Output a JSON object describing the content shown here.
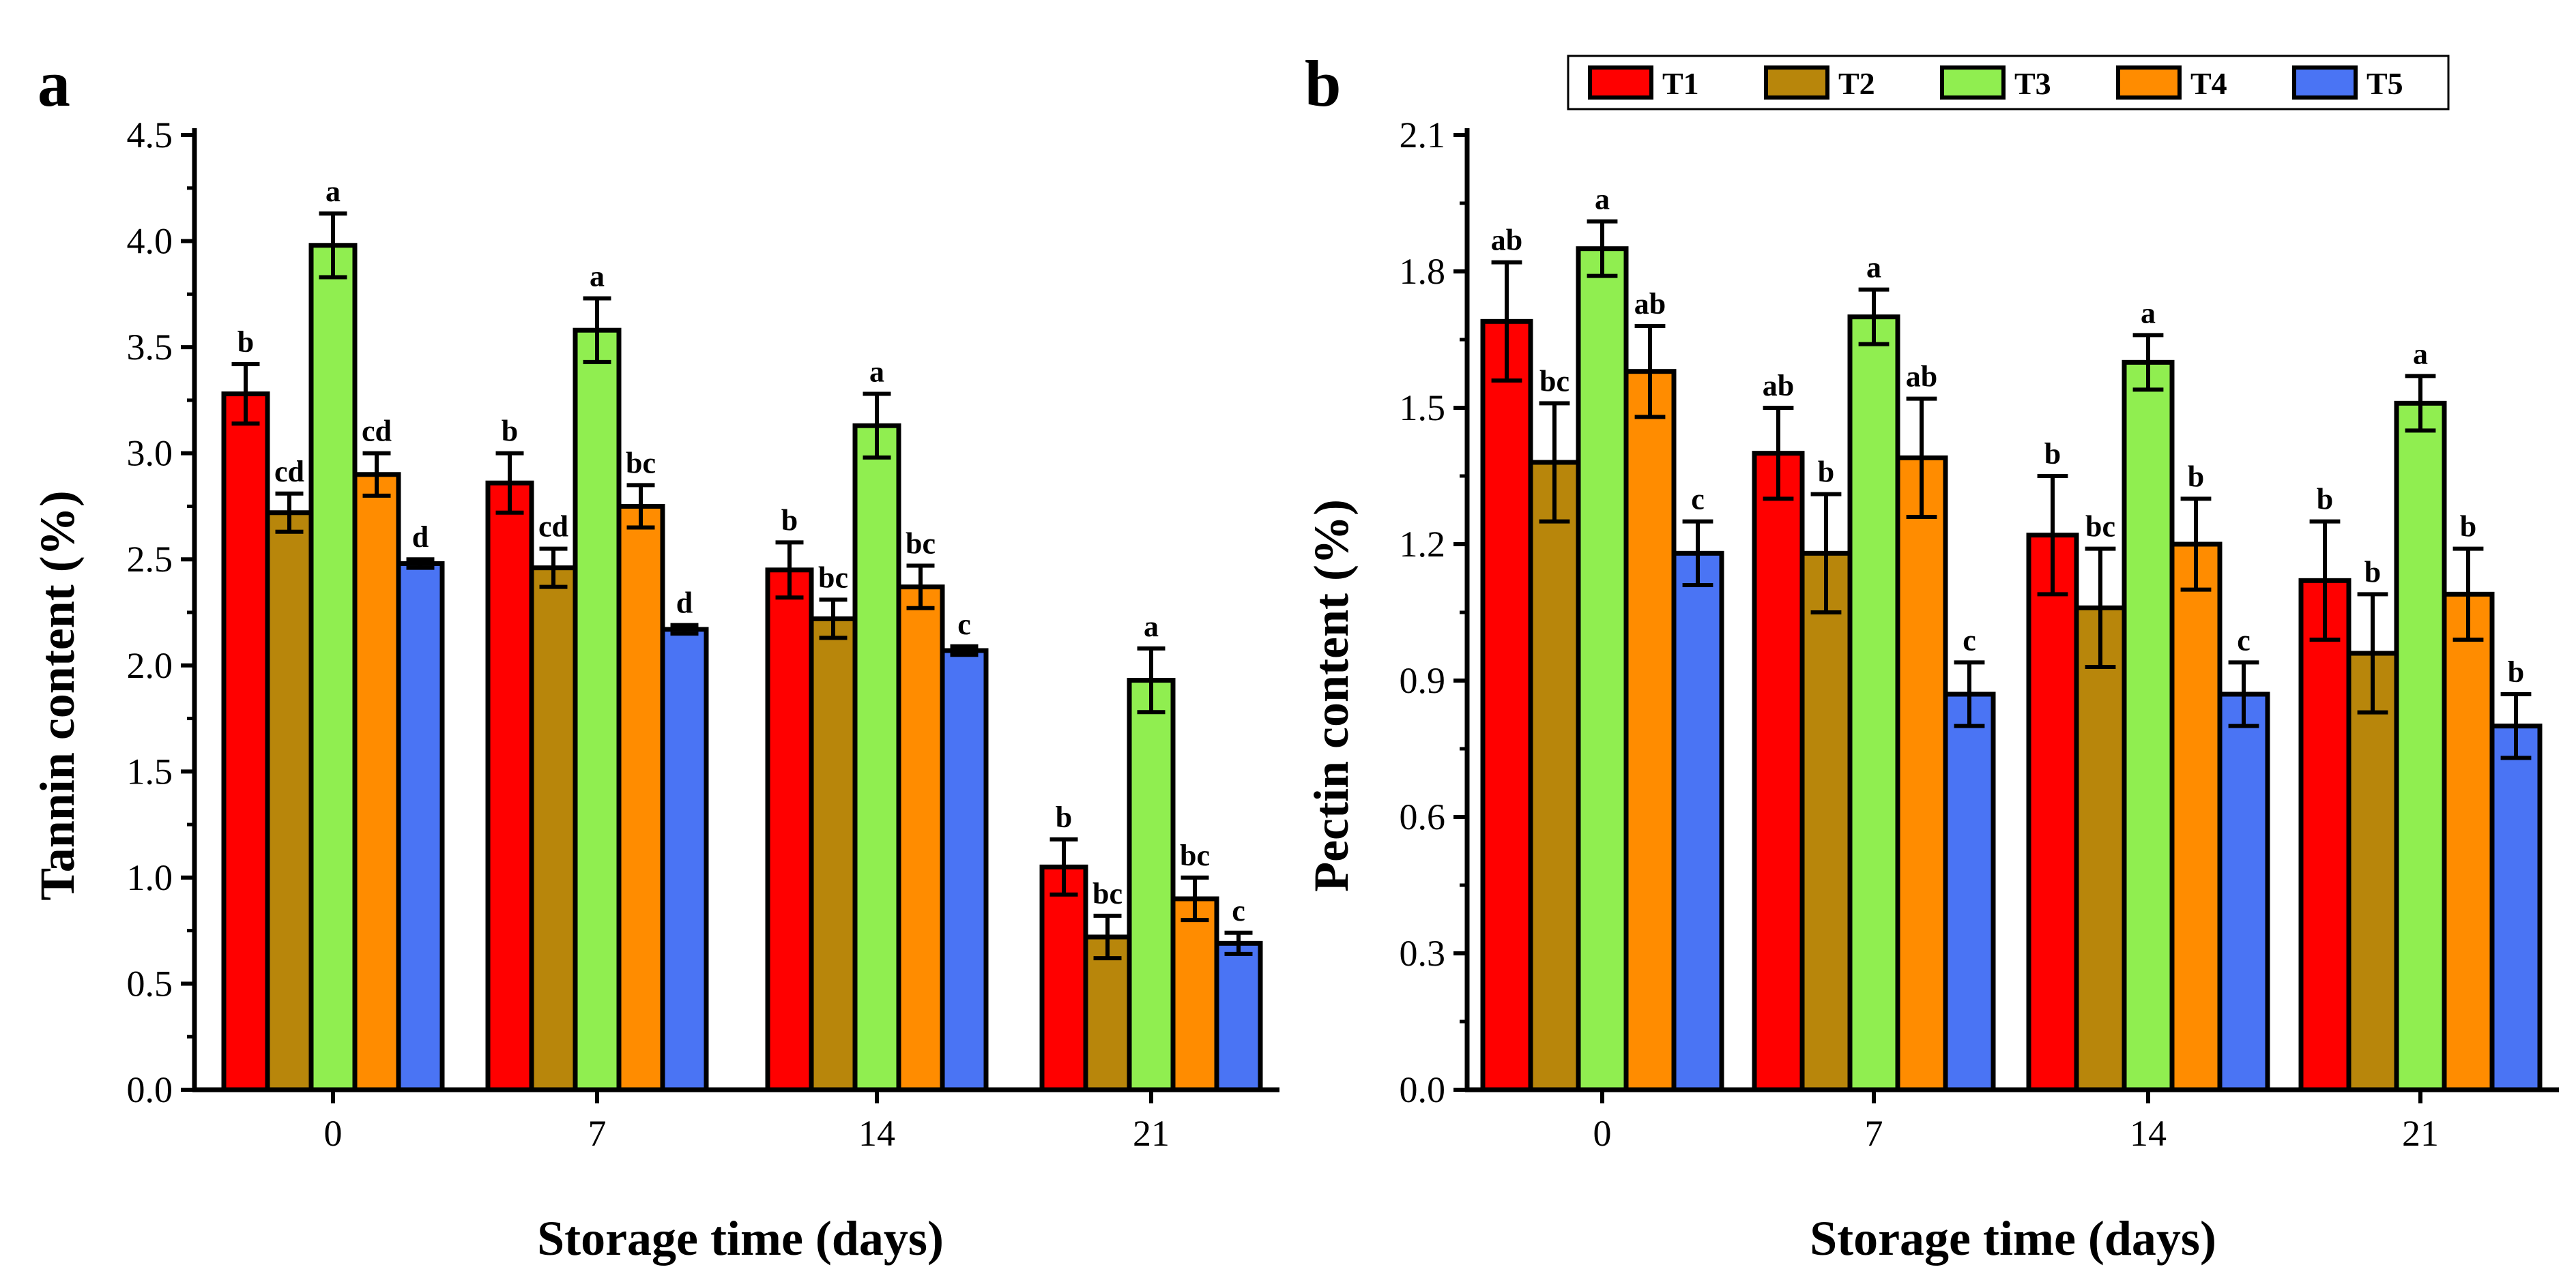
{
  "figure_title": "",
  "chart_data": [
    {
      "panel": "a",
      "type": "bar",
      "title": "",
      "xlabel": "Storage time (days)",
      "ylabel": "Tannin content (%)",
      "categories": [
        "0",
        "7",
        "14",
        "21"
      ],
      "ylim": [
        0,
        4.5
      ],
      "yticks": [
        "0.0",
        "0.5",
        "1.0",
        "1.5",
        "2.0",
        "2.5",
        "3.0",
        "3.5",
        "4.0",
        "4.5"
      ],
      "grid": false,
      "series": [
        {
          "name": "T1",
          "color": "#ff0000",
          "values": [
            3.28,
            2.86,
            2.45,
            1.05
          ],
          "errors": [
            0.14,
            0.14,
            0.13,
            0.13
          ],
          "labels": [
            "b",
            "b",
            "b",
            "b"
          ]
        },
        {
          "name": "T2",
          "color": "#b8860b",
          "values": [
            2.72,
            2.46,
            2.22,
            0.72
          ],
          "errors": [
            0.09,
            0.09,
            0.09,
            0.1
          ],
          "labels": [
            "cd",
            "cd",
            "bc",
            "bc"
          ]
        },
        {
          "name": "T3",
          "color": "#90ee50",
          "values": [
            3.98,
            3.58,
            3.13,
            1.93
          ],
          "errors": [
            0.15,
            0.15,
            0.15,
            0.15
          ],
          "labels": [
            "a",
            "a",
            "a",
            "a"
          ]
        },
        {
          "name": "T4",
          "color": "#ff8c00",
          "values": [
            2.9,
            2.75,
            2.37,
            0.9
          ],
          "errors": [
            0.1,
            0.1,
            0.1,
            0.1
          ],
          "labels": [
            "cd",
            "bc",
            "bc",
            "bc"
          ]
        },
        {
          "name": "T5",
          "color": "#4a74f4",
          "values": [
            2.48,
            2.17,
            2.07,
            0.69
          ],
          "errors": [
            0.02,
            0.02,
            0.02,
            0.05
          ],
          "labels": [
            "d",
            "d",
            "c",
            "c"
          ]
        }
      ]
    },
    {
      "panel": "b",
      "type": "bar",
      "title": "",
      "xlabel": "Storage time (days)",
      "ylabel": "Pectin content (%)",
      "categories": [
        "0",
        "7",
        "14",
        "21"
      ],
      "ylim": [
        0,
        2.1
      ],
      "yticks": [
        "0.0",
        "0.3",
        "0.6",
        "0.9",
        "1.2",
        "1.5",
        "1.8",
        "2.1"
      ],
      "grid": false,
      "legend_position": "top-right",
      "series": [
        {
          "name": "T1",
          "color": "#ff0000",
          "values": [
            1.69,
            1.4,
            1.22,
            1.12
          ],
          "errors": [
            0.13,
            0.1,
            0.13,
            0.13
          ],
          "labels": [
            "ab",
            "ab",
            "b",
            "b"
          ]
        },
        {
          "name": "T2",
          "color": "#b8860b",
          "values": [
            1.38,
            1.18,
            1.06,
            0.96
          ],
          "errors": [
            0.13,
            0.13,
            0.13,
            0.13
          ],
          "labels": [
            "bc",
            "b",
            "bc",
            "b"
          ]
        },
        {
          "name": "T3",
          "color": "#90ee50",
          "values": [
            1.85,
            1.7,
            1.6,
            1.51
          ],
          "errors": [
            0.06,
            0.06,
            0.06,
            0.06
          ],
          "labels": [
            "a",
            "a",
            "a",
            "a"
          ]
        },
        {
          "name": "T4",
          "color": "#ff8c00",
          "values": [
            1.58,
            1.39,
            1.2,
            1.09
          ],
          "errors": [
            0.1,
            0.13,
            0.1,
            0.1
          ],
          "labels": [
            "ab",
            "ab",
            "b",
            "b"
          ]
        },
        {
          "name": "T5",
          "color": "#4a74f4",
          "values": [
            1.18,
            0.87,
            0.87,
            0.8
          ],
          "errors": [
            0.07,
            0.07,
            0.07,
            0.07
          ],
          "labels": [
            "c",
            "c",
            "c",
            "b"
          ]
        }
      ]
    }
  ]
}
